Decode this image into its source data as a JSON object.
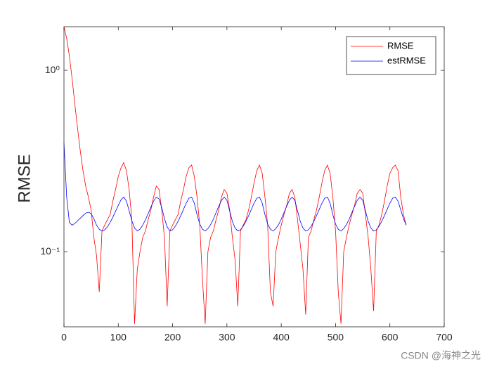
{
  "chart_data": {
    "type": "line",
    "ylabel": "RMSE",
    "yscale": "log",
    "xlim": [
      0,
      700
    ],
    "xticks": [
      0,
      100,
      200,
      300,
      400,
      500,
      600,
      700
    ],
    "ylim": [
      0.0385,
      1.74
    ],
    "yticks": [
      {
        "value": 0.1,
        "label": "10⁻¹"
      },
      {
        "value": 1,
        "label": "10⁰"
      }
    ],
    "legend": "northeast",
    "watermark": "CSDN @海神之光",
    "x": [
      0,
      5,
      10,
      15,
      20,
      25,
      30,
      35,
      40,
      45,
      50,
      55,
      60,
      65,
      70,
      75,
      80,
      85,
      90,
      95,
      100,
      105,
      110,
      115,
      120,
      125,
      130,
      135,
      140,
      145,
      150,
      155,
      160,
      165,
      170,
      175,
      180,
      185,
      190,
      195,
      200,
      205,
      210,
      215,
      220,
      225,
      230,
      235,
      240,
      245,
      250,
      255,
      260,
      265,
      270,
      275,
      280,
      285,
      290,
      295,
      300,
      305,
      310,
      315,
      320,
      325,
      330,
      335,
      340,
      345,
      350,
      355,
      360,
      365,
      370,
      375,
      380,
      385,
      390,
      395,
      400,
      405,
      410,
      415,
      420,
      425,
      430,
      435,
      440,
      445,
      450,
      455,
      460,
      465,
      470,
      475,
      480,
      485,
      490,
      495,
      500,
      505,
      510,
      515,
      520,
      525,
      530,
      535,
      540,
      545,
      550,
      555,
      560,
      565,
      570,
      575,
      580,
      585,
      590,
      595,
      600,
      605,
      610,
      615,
      620,
      625,
      630
    ],
    "series": [
      {
        "name": "RMSE",
        "color": "#ff0000",
        "values": [
          1.74,
          1.5,
          1.2,
          0.9,
          0.65,
          0.48,
          0.36,
          0.28,
          0.23,
          0.2,
          0.17,
          0.12,
          0.095,
          0.06,
          0.13,
          0.14,
          0.15,
          0.16,
          0.19,
          0.22,
          0.26,
          0.29,
          0.31,
          0.28,
          0.22,
          0.15,
          0.04,
          0.08,
          0.1,
          0.12,
          0.13,
          0.15,
          0.17,
          0.2,
          0.23,
          0.22,
          0.17,
          0.12,
          0.05,
          0.13,
          0.14,
          0.15,
          0.16,
          0.19,
          0.22,
          0.26,
          0.29,
          0.3,
          0.26,
          0.2,
          0.14,
          0.07,
          0.04,
          0.1,
          0.12,
          0.13,
          0.15,
          0.17,
          0.2,
          0.22,
          0.21,
          0.17,
          0.12,
          0.09,
          0.05,
          0.13,
          0.14,
          0.15,
          0.17,
          0.2,
          0.24,
          0.28,
          0.3,
          0.27,
          0.2,
          0.14,
          0.06,
          0.05,
          0.1,
          0.12,
          0.14,
          0.16,
          0.18,
          0.21,
          0.22,
          0.2,
          0.15,
          0.11,
          0.08,
          0.045,
          0.12,
          0.13,
          0.15,
          0.17,
          0.2,
          0.24,
          0.28,
          0.3,
          0.27,
          0.2,
          0.13,
          0.06,
          0.04,
          0.1,
          0.12,
          0.14,
          0.16,
          0.18,
          0.21,
          0.22,
          0.21,
          0.16,
          0.12,
          0.08,
          0.047,
          0.13,
          0.14,
          0.16,
          0.19,
          0.23,
          0.27,
          0.29,
          0.3,
          0.28,
          0.2,
          0.16,
          0.14
        ]
      },
      {
        "name": "estRMSE",
        "color": "#0000ff",
        "values": [
          0.4,
          0.2,
          0.145,
          0.14,
          0.143,
          0.148,
          0.153,
          0.158,
          0.163,
          0.165,
          0.162,
          0.152,
          0.14,
          0.133,
          0.13,
          0.132,
          0.137,
          0.145,
          0.155,
          0.167,
          0.18,
          0.193,
          0.2,
          0.19,
          0.168,
          0.148,
          0.135,
          0.13,
          0.133,
          0.14,
          0.15,
          0.162,
          0.176,
          0.19,
          0.2,
          0.195,
          0.175,
          0.152,
          0.137,
          0.13,
          0.132,
          0.138,
          0.147,
          0.158,
          0.171,
          0.185,
          0.197,
          0.2,
          0.185,
          0.16,
          0.142,
          0.133,
          0.13,
          0.134,
          0.141,
          0.151,
          0.164,
          0.178,
          0.192,
          0.2,
          0.192,
          0.168,
          0.147,
          0.135,
          0.13,
          0.132,
          0.138,
          0.147,
          0.158,
          0.171,
          0.185,
          0.197,
          0.2,
          0.185,
          0.16,
          0.142,
          0.133,
          0.13,
          0.134,
          0.141,
          0.151,
          0.164,
          0.178,
          0.192,
          0.2,
          0.192,
          0.168,
          0.147,
          0.135,
          0.13,
          0.132,
          0.138,
          0.147,
          0.158,
          0.171,
          0.185,
          0.197,
          0.2,
          0.185,
          0.16,
          0.142,
          0.133,
          0.13,
          0.134,
          0.141,
          0.151,
          0.164,
          0.178,
          0.192,
          0.2,
          0.192,
          0.168,
          0.147,
          0.135,
          0.13,
          0.132,
          0.138,
          0.147,
          0.158,
          0.171,
          0.185,
          0.197,
          0.2,
          0.19,
          0.17,
          0.152,
          0.14
        ]
      }
    ]
  }
}
